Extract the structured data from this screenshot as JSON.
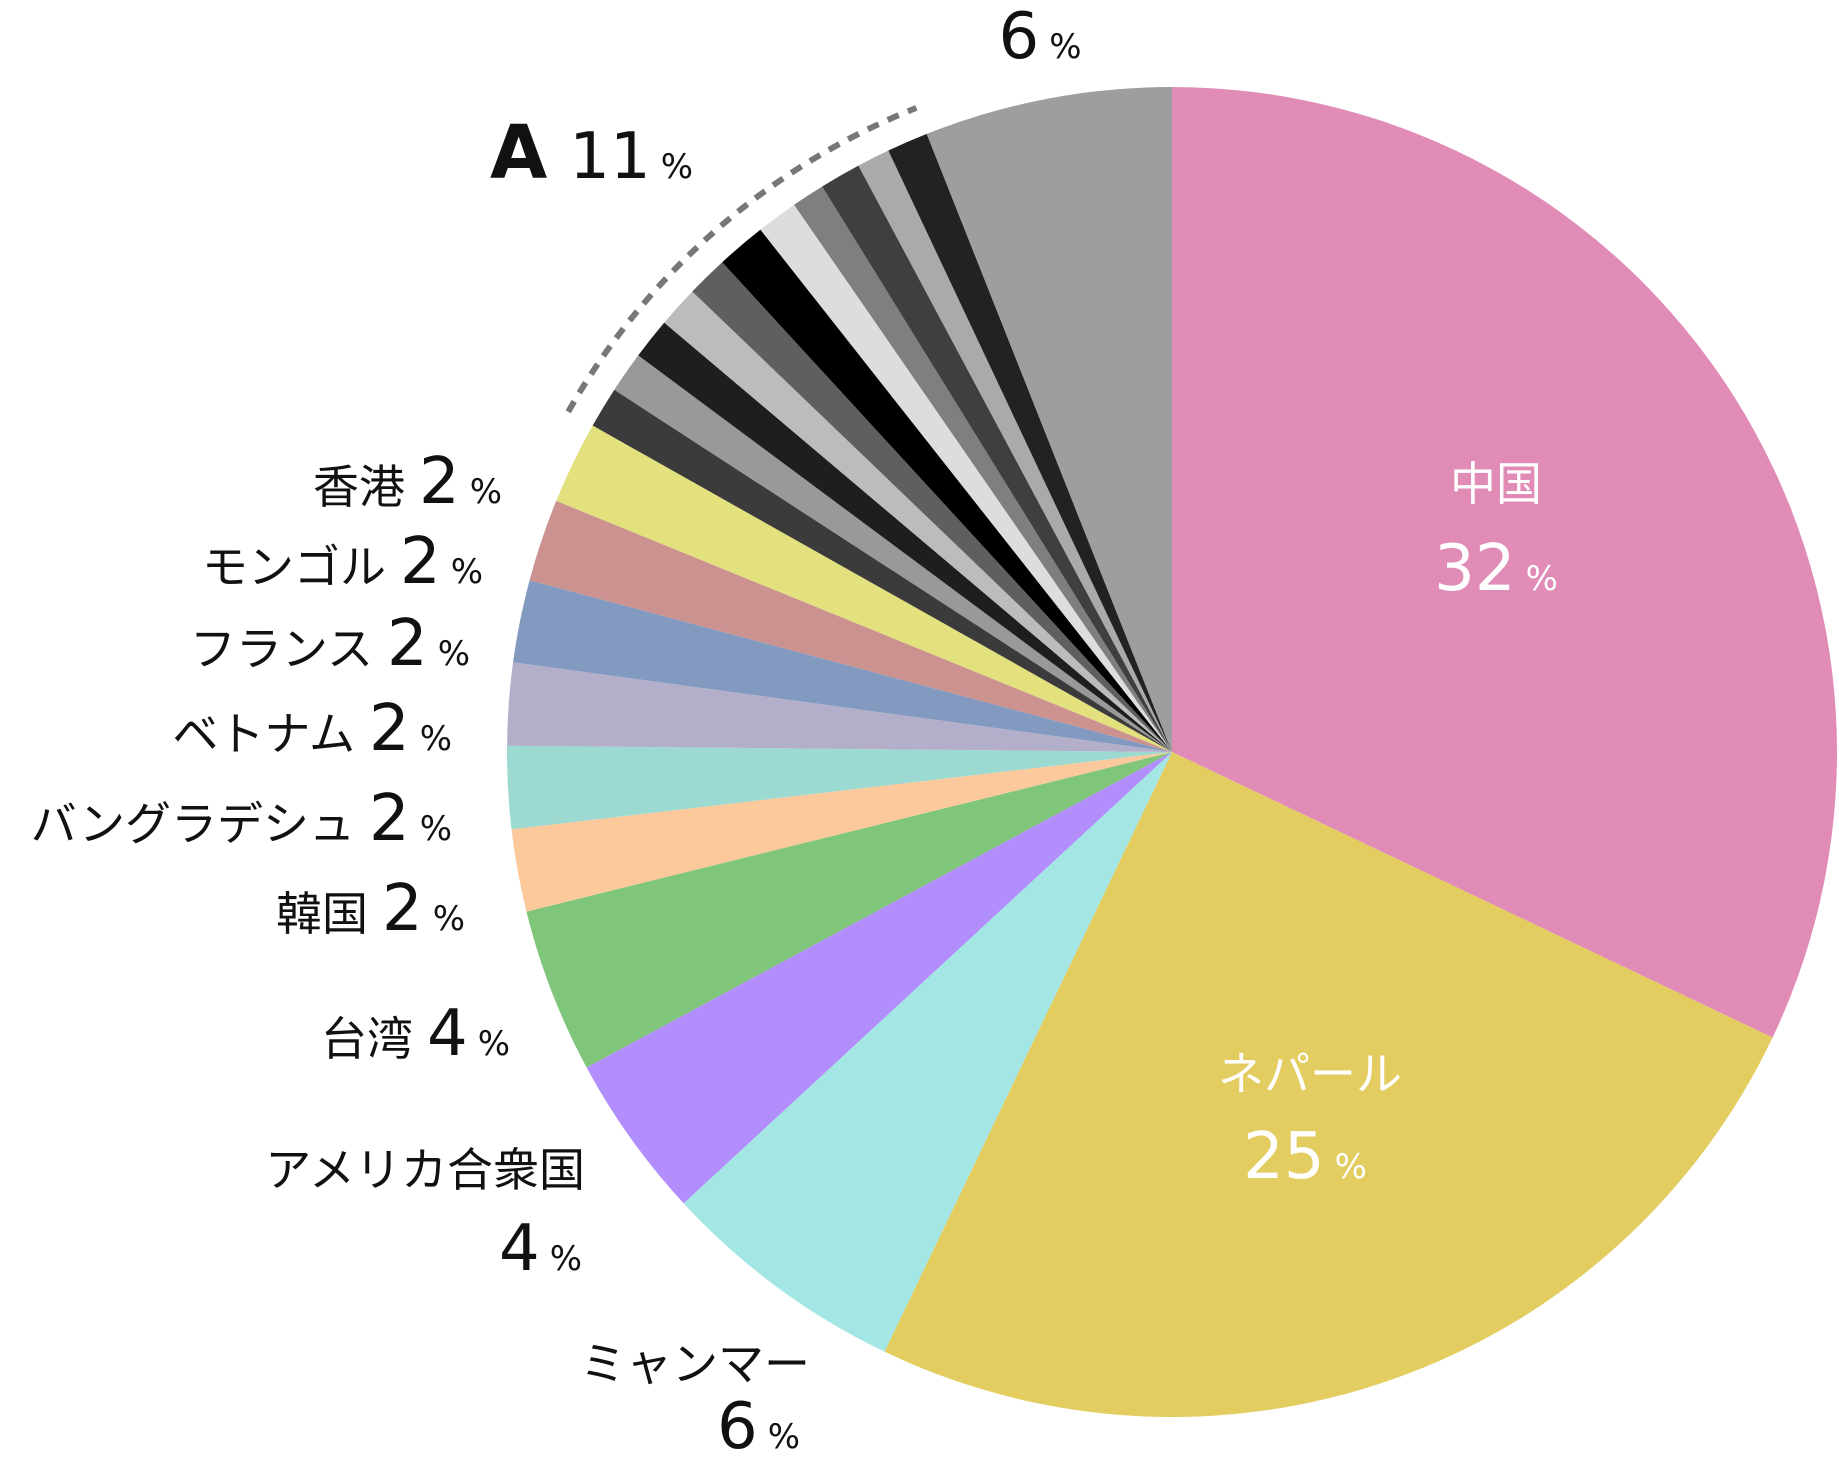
{
  "chart_data": {
    "type": "pie",
    "title": "",
    "start": "top",
    "direction": "clockwise",
    "slices": [
      {
        "label": "中国",
        "value": 32,
        "color": "#e18cb6"
      },
      {
        "label": "ネパール",
        "value": 25,
        "color": "#e3cd61"
      },
      {
        "label": "ミャンマー",
        "value": 6,
        "color": "#a3e6e4"
      },
      {
        "label": "アメリカ合衆国",
        "value": 4,
        "color": "#b18efc"
      },
      {
        "label": "台湾",
        "value": 4,
        "color": "#7fc67b"
      },
      {
        "label": "韓国",
        "value": 2,
        "color": "#fbc99b"
      },
      {
        "label": "バングラデシュ",
        "value": 2,
        "color": "#9cd9d1"
      },
      {
        "label": "ベトナム",
        "value": 2,
        "color": "#b3afcb"
      },
      {
        "label": "フランス",
        "value": 2,
        "color": "#839ac0"
      },
      {
        "label": "モンゴル",
        "value": 2,
        "color": "#cc9290"
      },
      {
        "label": "香港",
        "value": 2,
        "color": "#e3e07e"
      },
      {
        "label": "",
        "value": 1.0,
        "color": "#3b3b3b",
        "group": "A"
      },
      {
        "label": "",
        "value": 1.0,
        "color": "#999999",
        "group": "A"
      },
      {
        "label": "",
        "value": 1.0,
        "color": "#1e1e1e",
        "group": "A"
      },
      {
        "label": "",
        "value": 1.0,
        "color": "#bcbcbc",
        "group": "A"
      },
      {
        "label": "",
        "value": 1.0,
        "color": "#5f5f5f",
        "group": "A"
      },
      {
        "label": "",
        "value": 1.2,
        "color": "#000000",
        "group": "A"
      },
      {
        "label": "",
        "value": 1.0,
        "color": "#dddddd",
        "group": "A"
      },
      {
        "label": "",
        "value": 0.8,
        "color": "#7f7f7f",
        "group": "A"
      },
      {
        "label": "",
        "value": 1.0,
        "color": "#3f3f3f",
        "group": "A"
      },
      {
        "label": "",
        "value": 0.8,
        "color": "#aaaaaa",
        "group": "A"
      },
      {
        "label": "",
        "value": 1.0,
        "color": "#222222",
        "group": "A"
      },
      {
        "label": "",
        "value": 6,
        "color": "#9d9ea0"
      }
    ],
    "group_A": {
      "letter": "A",
      "value": "11",
      "unit": "%"
    }
  },
  "labels": {
    "china": {
      "name": "中国",
      "value": "32",
      "unit": "%"
    },
    "nepal": {
      "name": "ネパール",
      "value": "25",
      "unit": "%"
    },
    "myanmar": {
      "name": "ミャンマー",
      "value": "6",
      "unit": "%"
    },
    "usa": {
      "name": "アメリカ合衆国",
      "value": "4",
      "unit": "%"
    },
    "taiwan": {
      "name": "台湾",
      "value": "4",
      "unit": "%"
    },
    "korea": {
      "name": "韓国",
      "value": "2",
      "unit": "%"
    },
    "bangladesh": {
      "name": "バングラデシュ",
      "value": "2",
      "unit": "%"
    },
    "vietnam": {
      "name": "ベトナム",
      "value": "2",
      "unit": "%"
    },
    "france": {
      "name": "フランス",
      "value": "2",
      "unit": "%"
    },
    "mongolia": {
      "name": "モンゴル",
      "value": "2",
      "unit": "%"
    },
    "hongkong": {
      "name": "香港",
      "value": "2",
      "unit": "%"
    },
    "group_a": {
      "letter": "A",
      "value": "11",
      "unit": "%"
    },
    "other": {
      "value": "6",
      "unit": "%"
    }
  }
}
